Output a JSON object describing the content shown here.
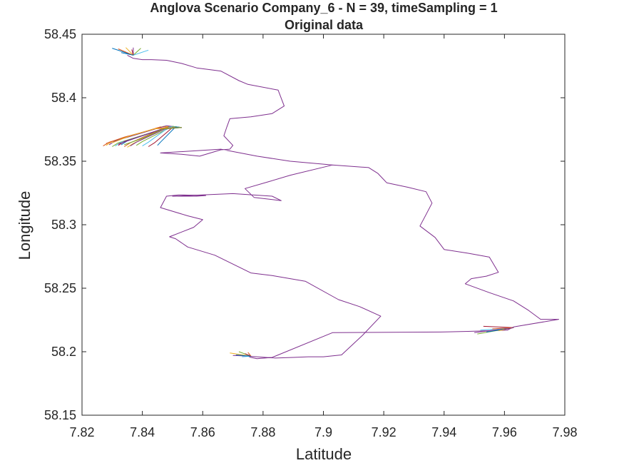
{
  "chart_data": {
    "type": "line",
    "title": "Anglova Scenario Company_6 - N = 39, timeSampling = 1",
    "subtitle": "Original data",
    "xlabel": "Latitude",
    "ylabel": "Longitude",
    "xlim": [
      7.82,
      7.98
    ],
    "ylim": [
      58.15,
      58.45
    ],
    "xticks": [
      "7.82",
      "7.84",
      "7.86",
      "7.88",
      "7.9",
      "7.92",
      "7.94",
      "7.96",
      "7.98"
    ],
    "yticks": [
      "58.15",
      "58.2",
      "58.25",
      "58.3",
      "58.35",
      "58.4",
      "58.45"
    ],
    "grid": false,
    "legend": "none",
    "colors": {
      "axis": "#262626",
      "main_route": "#7e2f8e",
      "series_palette": [
        "#0072bd",
        "#d95319",
        "#edb120",
        "#7e2f8e",
        "#77ac30",
        "#4dbeee",
        "#a2142f"
      ]
    },
    "main_route": {
      "x": [
        7.835,
        7.837,
        7.84,
        7.843,
        7.848,
        7.853,
        7.858,
        7.866,
        7.872,
        7.875,
        7.885,
        7.887,
        7.883,
        7.876,
        7.869,
        7.868,
        7.867,
        7.87,
        7.869,
        7.866,
        7.859,
        7.853,
        7.846,
        7.866,
        7.878,
        7.889,
        7.903,
        7.915,
        7.918,
        7.921,
        7.928,
        7.934,
        7.936,
        7.934,
        7.932,
        7.937,
        7.94,
        7.948,
        7.955,
        7.958,
        7.954,
        7.949,
        7.947,
        7.955,
        7.963,
        7.968,
        7.972,
        7.978,
        7.963,
        7.961,
        7.948,
        7.939,
        7.903,
        7.883,
        7.878,
        7.876,
        7.875,
        7.884,
        7.89,
        7.895,
        7.9,
        7.906,
        7.913,
        7.919,
        7.912,
        7.905,
        7.894,
        7.883,
        7.876,
        7.864,
        7.855,
        7.851,
        7.849,
        7.857,
        7.86,
        7.855,
        7.846,
        7.848,
        7.852,
        7.861,
        7.858,
        7.857,
        7.85,
        7.87,
        7.883,
        7.886,
        7.877,
        7.874,
        7.882,
        7.889,
        7.903
      ],
      "y": [
        58.4335,
        58.431,
        58.43,
        58.43,
        58.4295,
        58.427,
        58.4235,
        58.421,
        58.4135,
        58.4105,
        58.406,
        58.3935,
        58.3875,
        58.385,
        58.3835,
        58.377,
        58.37,
        58.3625,
        58.3595,
        58.359,
        58.354,
        58.3555,
        58.3565,
        58.3595,
        58.354,
        58.35,
        58.347,
        58.345,
        58.3405,
        58.333,
        58.3295,
        58.326,
        58.317,
        58.308,
        58.299,
        58.29,
        58.2805,
        58.2775,
        58.2745,
        58.2625,
        58.2595,
        58.2575,
        58.2535,
        58.2465,
        58.24,
        58.2325,
        58.2255,
        58.2255,
        58.2195,
        58.217,
        58.216,
        58.2155,
        58.215,
        58.1955,
        58.1945,
        58.1955,
        58.1965,
        58.195,
        58.1955,
        58.196,
        58.196,
        58.1975,
        58.213,
        58.228,
        58.2355,
        58.241,
        58.2555,
        58.26,
        58.262,
        58.276,
        58.2825,
        58.289,
        58.2905,
        58.298,
        58.304,
        58.307,
        58.3135,
        58.3225,
        58.3235,
        58.323,
        58.3225,
        58.3225,
        58.3225,
        58.3245,
        58.3225,
        58.319,
        58.3215,
        58.3285,
        58.334,
        58.339,
        58.347
      ]
    },
    "clusters": [
      {
        "series": [
          {
            "x": [
              7.83,
              7.837
            ],
            "y": [
              58.439,
              58.4335
            ]
          },
          {
            "x": [
              7.832,
              7.837
            ],
            "y": [
              58.4385,
              58.4335
            ]
          },
          {
            "x": [
              7.8345,
              7.837
            ],
            "y": [
              58.4395,
              58.4335
            ]
          },
          {
            "x": [
              7.837,
              7.837
            ],
            "y": [
              58.4395,
              58.4335
            ]
          },
          {
            "x": [
              7.8395,
              7.837
            ],
            "y": [
              58.439,
              58.4335
            ]
          },
          {
            "x": [
              7.842,
              7.837
            ],
            "y": [
              58.4375,
              58.4335
            ]
          },
          {
            "x": [
              7.8365,
              7.837
            ],
            "y": [
              58.438,
              58.4335
            ]
          },
          {
            "x": [
              7.833,
              7.837
            ],
            "y": [
              58.4355,
              58.4335
            ]
          }
        ]
      },
      {
        "series": [
          {
            "x": [
              7.827,
              7.829,
              7.846,
              7.853
            ],
            "y": [
              58.362,
              58.365,
              58.377,
              58.3765
            ]
          },
          {
            "x": [
              7.828,
              7.83,
              7.847,
              7.853
            ],
            "y": [
              58.3625,
              58.3655,
              58.3775,
              58.3765
            ]
          },
          {
            "x": [
              7.829,
              7.831,
              7.848,
              7.853
            ],
            "y": [
              58.363,
              58.366,
              58.378,
              58.3765
            ]
          },
          {
            "x": [
              7.83,
              7.832,
              7.849,
              7.853
            ],
            "y": [
              58.3615,
              58.3645,
              58.377,
              58.3765
            ]
          },
          {
            "x": [
              7.831,
              7.833,
              7.85,
              7.853
            ],
            "y": [
              58.362,
              58.365,
              58.3775,
              58.3765
            ]
          },
          {
            "x": [
              7.832,
              7.834,
              7.849,
              7.853
            ],
            "y": [
              58.3625,
              58.3655,
              58.377,
              58.3765
            ]
          },
          {
            "x": [
              7.833,
              7.835,
              7.848,
              7.853
            ],
            "y": [
              58.363,
              58.366,
              58.3765,
              58.3765
            ]
          },
          {
            "x": [
              7.834,
              7.836,
              7.847,
              7.853
            ],
            "y": [
              58.3615,
              58.3645,
              58.376,
              58.3765
            ]
          },
          {
            "x": [
              7.835,
              7.837,
              7.848,
              7.853
            ],
            "y": [
              58.361,
              58.364,
              58.3765,
              58.3765
            ]
          },
          {
            "x": [
              7.836,
              7.838,
              7.849,
              7.853
            ],
            "y": [
              58.362,
              58.365,
              58.377,
              58.3765
            ]
          },
          {
            "x": [
              7.838,
              7.84,
              7.85,
              7.853
            ],
            "y": [
              58.3625,
              58.3655,
              58.3775,
              58.3765
            ]
          },
          {
            "x": [
              7.84,
              7.842,
              7.849,
              7.853
            ],
            "y": [
              58.362,
              58.365,
              58.377,
              58.3765
            ]
          },
          {
            "x": [
              7.842,
              7.844,
              7.85,
              7.853
            ],
            "y": [
              58.3615,
              58.3645,
              58.3765,
              58.3765
            ]
          },
          {
            "x": [
              7.845,
              7.846,
              7.851,
              7.853
            ],
            "y": [
              58.3625,
              58.365,
              58.377,
              58.3765
            ]
          },
          {
            "x": [
              7.828,
              7.834,
              7.845,
              7.853
            ],
            "y": [
              58.364,
              58.369,
              58.376,
              58.3765
            ]
          },
          {
            "x": [
              7.83,
              7.836,
              7.844,
              7.853
            ],
            "y": [
              58.3645,
              58.37,
              58.3755,
              58.3765
            ]
          },
          {
            "x": [
              7.832,
              7.838,
              7.846,
              7.853
            ],
            "y": [
              58.3635,
              58.3685,
              58.375,
              58.3765
            ]
          },
          {
            "x": [
              7.834,
              7.84,
              7.847,
              7.853
            ],
            "y": [
              58.363,
              58.368,
              58.3755,
              58.3765
            ]
          }
        ]
      },
      {
        "series": [
          {
            "x": [
              7.869,
              7.876
            ],
            "y": [
              58.199,
              58.1965
            ]
          },
          {
            "x": [
              7.87,
              7.876
            ],
            "y": [
              58.197,
              58.1965
            ]
          },
          {
            "x": [
              7.872,
              7.876
            ],
            "y": [
              58.2,
              58.1965
            ]
          },
          {
            "x": [
              7.873,
              7.876
            ],
            "y": [
              58.196,
              58.1965
            ]
          },
          {
            "x": [
              7.874,
              7.876
            ],
            "y": [
              58.1985,
              58.1965
            ]
          },
          {
            "x": [
              7.871,
              7.876
            ],
            "y": [
              58.1975,
              58.1965
            ]
          },
          {
            "x": [
              7.875,
              7.876
            ],
            "y": [
              58.1995,
              58.1965
            ]
          }
        ]
      },
      {
        "series": [
          {
            "x": [
              7.95,
              7.963
            ],
            "y": [
              58.215,
              58.219
            ]
          },
          {
            "x": [
              7.951,
              7.963
            ],
            "y": [
              58.214,
              58.219
            ]
          },
          {
            "x": [
              7.952,
              7.963
            ],
            "y": [
              58.217,
              58.219
            ]
          },
          {
            "x": [
              7.953,
              7.963
            ],
            "y": [
              58.22,
              58.219
            ]
          },
          {
            "x": [
              7.954,
              7.963
            ],
            "y": [
              58.2155,
              58.219
            ]
          },
          {
            "x": [
              7.956,
              7.963
            ],
            "y": [
              58.218,
              58.219
            ]
          },
          {
            "x": [
              7.958,
              7.963
            ],
            "y": [
              58.2165,
              58.219
            ]
          },
          {
            "x": [
              7.96,
              7.963
            ],
            "y": [
              58.2175,
              58.219
            ]
          }
        ]
      }
    ]
  }
}
